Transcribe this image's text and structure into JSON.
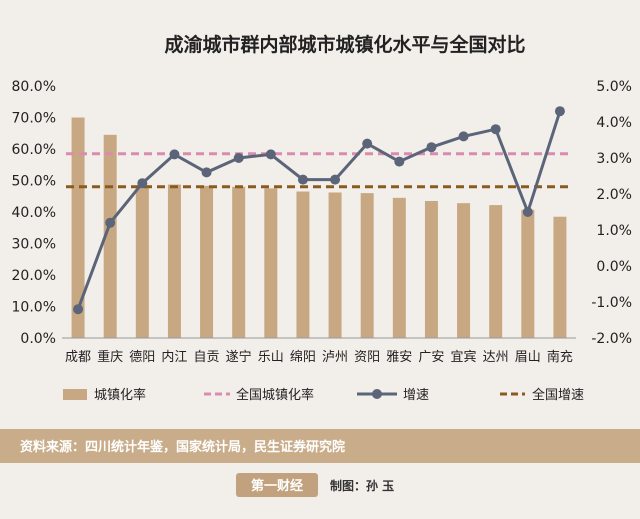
{
  "chart_data": {
    "type": "bar",
    "title": "成渝城市群内部城市城镇化水平与全国对比",
    "categories": [
      "成都",
      "重庆",
      "德阳",
      "内江",
      "自贡",
      "遂宁",
      "乐山",
      "绵阳",
      "泸州",
      "资阳",
      "雅安",
      "广安",
      "宜宾",
      "达州",
      "眉山",
      "南充"
    ],
    "series": [
      {
        "name": "城镇化率",
        "type": "bar",
        "axis": "left",
        "color": "#c8a882",
        "values": [
          70.0,
          64.5,
          48.5,
          48.7,
          48.3,
          48.0,
          47.5,
          46.5,
          46.2,
          46.0,
          44.5,
          43.5,
          42.8,
          42.2,
          40.7,
          38.5
        ]
      },
      {
        "name": "全国城镇化率",
        "type": "line",
        "axis": "left",
        "style": "dashed",
        "color": "#d98cb0",
        "value": 58.5
      },
      {
        "name": "增速",
        "type": "line",
        "axis": "right",
        "color": "#5b6478",
        "values": [
          -1.2,
          1.2,
          2.3,
          3.1,
          2.6,
          3.0,
          3.1,
          2.4,
          2.4,
          3.4,
          2.9,
          3.3,
          3.6,
          3.8,
          1.5,
          4.3
        ]
      },
      {
        "name": "全国增速",
        "type": "line",
        "axis": "right",
        "style": "dashed",
        "color": "#8b5a1e",
        "value": 2.2
      }
    ],
    "left_axis": {
      "min": 0,
      "max": 80,
      "ticks": [
        "0.0%",
        "10.0%",
        "20.0%",
        "30.0%",
        "40.0%",
        "50.0%",
        "60.0%",
        "70.0%",
        "80.0%"
      ]
    },
    "right_axis": {
      "min": -2,
      "max": 5,
      "ticks": [
        "-2.0%",
        "-1.0%",
        "0.0%",
        "1.0%",
        "2.0%",
        "3.0%",
        "4.0%",
        "5.0%"
      ]
    },
    "legend_position": "bottom"
  },
  "source_text": "资料来源：四川统计年鉴，国家统计局，民生证券研究院",
  "logo_text": "第一财经",
  "credit_text": "制图：孙 玉"
}
